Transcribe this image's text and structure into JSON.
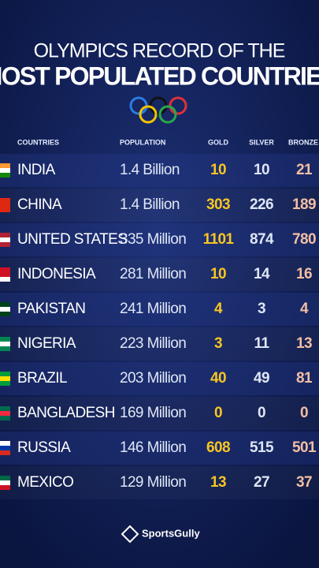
{
  "header": {
    "title_line1": "OLYMPICS RECORD OF THE",
    "title_line2": "MOST POPULATED COUNTRIES"
  },
  "table": {
    "headers": [
      "COUNTRIES",
      "POPULATION",
      "GOLD",
      "SILVER",
      "BRONZE"
    ],
    "rows": [
      [
        "INDIA",
        "1.4 Billion",
        10,
        10,
        21
      ],
      [
        "CHINA",
        "1.4 Billion",
        303,
        226,
        189
      ],
      [
        "UNITED STATES",
        "335 Million",
        1101,
        874,
        780
      ],
      [
        "INDONESIA",
        "281 Million",
        10,
        14,
        16
      ],
      [
        "PAKISTAN",
        "241 Million",
        4,
        3,
        4
      ],
      [
        "NIGERIA",
        "223 Million",
        3,
        11,
        13
      ],
      [
        "BRAZIL",
        "203 Million",
        40,
        49,
        81
      ],
      [
        "BANGLADESH",
        "169 Million",
        0,
        0,
        0
      ],
      [
        "RUSSIA",
        "146 Million",
        608,
        515,
        501
      ],
      [
        "MEXICO",
        "129 Million",
        13,
        27,
        37
      ]
    ]
  },
  "footer": {
    "brand": "SportsGully"
  }
}
